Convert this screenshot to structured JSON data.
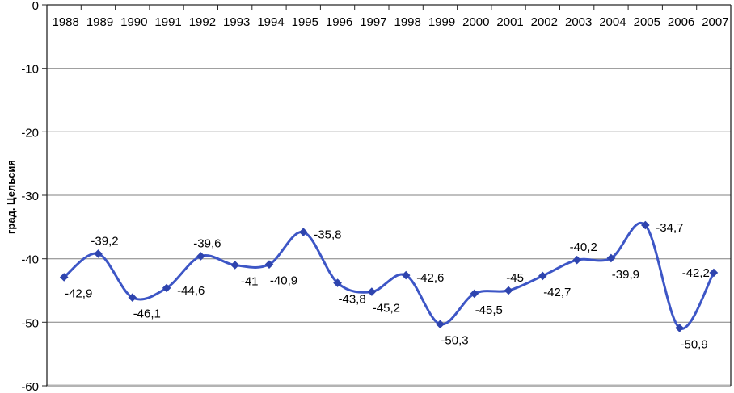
{
  "chart_data": {
    "type": "line",
    "ylabel": "град. Цельсия",
    "categories": [
      "1988",
      "1989",
      "1990",
      "1991",
      "1992",
      "1993",
      "1994",
      "1995",
      "1996",
      "1997",
      "1998",
      "1999",
      "2000",
      "2001",
      "2002",
      "2003",
      "2004",
      "2005",
      "2006",
      "2007"
    ],
    "series": [
      {
        "values": [
          -42.9,
          -39.2,
          -46.1,
          -44.6,
          -39.6,
          -41,
          -40.9,
          -35.8,
          -43.8,
          -45.2,
          -42.6,
          -50.3,
          -45.5,
          -45,
          -42.7,
          -40.2,
          -39.9,
          -34.7,
          -50.9,
          -42.2
        ],
        "point_labels": [
          "-42,9",
          "-39,2",
          "-46,1",
          "-44,6",
          "-39,6",
          "-41",
          "-40,9",
          "-35,8",
          "-43,8",
          "-45,2",
          "-42,6",
          "-50,3",
          "-45,5",
          "-45",
          "-42,7",
          "-40,2",
          "-39,9",
          "-34,7",
          "-50,9",
          "-42,2"
        ],
        "label_positions": [
          "below",
          "above",
          "below",
          "right",
          "above",
          "below",
          "below",
          "right",
          "below",
          "below",
          "right",
          "below",
          "below",
          "above",
          "below",
          "above",
          "below",
          "right",
          "below",
          "left"
        ]
      }
    ],
    "ylim": [
      -60,
      0
    ],
    "yticks": [
      0,
      -10,
      -20,
      -30,
      -40,
      -50,
      -60
    ],
    "ytick_labels": [
      "0",
      "-10",
      "-20",
      "-30",
      "-40",
      "-50",
      "-60"
    ],
    "grid": true,
    "smoothed": true,
    "marker": "diamond",
    "legend": "none",
    "colors": {
      "line": "#3d56c6",
      "marker": "#2e44ae",
      "gridline": "#808080",
      "axis": "#262626",
      "bottom_border": "#b3b3b3",
      "text": "#000000",
      "background": "#ffffff"
    }
  }
}
